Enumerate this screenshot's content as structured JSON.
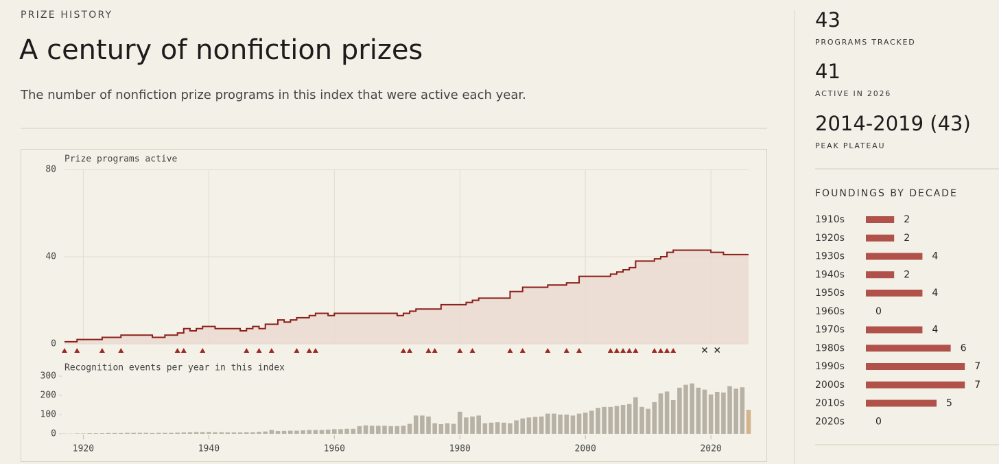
{
  "header": {
    "eyebrow": "PRIZE HISTORY",
    "title": "A century of nonfiction prizes",
    "subtitle": "The number of nonfiction prize programs in this index that were active each year."
  },
  "stats": [
    {
      "value": 43,
      "label": "PROGRAMS TRACKED"
    },
    {
      "value": 41,
      "label": "ACTIVE IN 2026"
    },
    {
      "value": "2014-2019 (43)",
      "label": "PEAK PLATEAU"
    }
  ],
  "chart_data": [
    {
      "type": "step",
      "axis_label": "Prize programs active",
      "color": "#8b1e1a",
      "fill": "#ead9d0",
      "marker_color": "#9b2a22",
      "closure_color": "#222222",
      "x": [
        1917,
        1919,
        1923,
        1926,
        1931,
        1933,
        1935,
        1936,
        1937,
        1938,
        1939,
        1941,
        1945,
        1946,
        1947,
        1948,
        1949,
        1951,
        1952,
        1953,
        1954,
        1956,
        1957,
        1959,
        1960,
        1970,
        1971,
        1972,
        1973,
        1977,
        1981,
        1982,
        1983,
        1988,
        1990,
        1994,
        1997,
        1999,
        2004,
        2005,
        2006,
        2007,
        2008,
        2011,
        2012,
        2013,
        2014,
        2020,
        2022,
        2026
      ],
      "values": [
        1,
        2,
        3,
        4,
        3,
        4,
        5,
        7,
        6,
        7,
        8,
        7,
        6,
        7,
        8,
        7,
        9,
        11,
        10,
        11,
        12,
        13,
        14,
        13,
        14,
        13,
        14,
        15,
        16,
        18,
        19,
        20,
        21,
        24,
        26,
        27,
        28,
        31,
        32,
        33,
        34,
        35,
        38,
        39,
        40,
        42,
        43,
        42,
        41,
        41
      ],
      "foundings": [
        1917,
        1919,
        1923,
        1926,
        1935,
        1936,
        1939,
        1946,
        1948,
        1950,
        1954,
        1956,
        1957,
        1971,
        1972,
        1975,
        1976,
        1980,
        1982,
        1988,
        1990,
        1994,
        1997,
        1999,
        2004,
        2005,
        2006,
        2007,
        2008,
        2011,
        2012,
        2013,
        2014
      ],
      "closures": [
        2019,
        2021
      ],
      "xlim": [
        1917,
        2026
      ],
      "xticks": [
        1920,
        1940,
        1960,
        1980,
        2000,
        2020
      ],
      "ylim": [
        0,
        80
      ],
      "yticks": [
        0,
        40,
        80
      ],
      "grid": true
    },
    {
      "type": "bar",
      "axis_label": "Recognition events per year in this index",
      "color": "#b7b2a5",
      "partial_color": "#d4b48e",
      "x": [
        1917,
        1918,
        1919,
        1920,
        1921,
        1922,
        1923,
        1924,
        1925,
        1926,
        1927,
        1928,
        1929,
        1930,
        1931,
        1932,
        1933,
        1934,
        1935,
        1936,
        1937,
        1938,
        1939,
        1940,
        1941,
        1942,
        1943,
        1944,
        1945,
        1946,
        1947,
        1948,
        1949,
        1950,
        1951,
        1952,
        1953,
        1954,
        1955,
        1956,
        1957,
        1958,
        1959,
        1960,
        1961,
        1962,
        1963,
        1964,
        1965,
        1966,
        1967,
        1968,
        1969,
        1970,
        1971,
        1972,
        1973,
        1974,
        1975,
        1976,
        1977,
        1978,
        1979,
        1980,
        1981,
        1982,
        1983,
        1984,
        1985,
        1986,
        1987,
        1988,
        1989,
        1990,
        1991,
        1992,
        1993,
        1994,
        1995,
        1996,
        1997,
        1998,
        1999,
        2000,
        2001,
        2002,
        2003,
        2004,
        2005,
        2006,
        2007,
        2008,
        2009,
        2010,
        2011,
        2012,
        2013,
        2014,
        2015,
        2016,
        2017,
        2018,
        2019,
        2020,
        2021,
        2022,
        2023,
        2024,
        2025,
        2026
      ],
      "values": [
        1,
        1,
        2,
        2,
        3,
        3,
        3,
        4,
        4,
        4,
        5,
        5,
        5,
        5,
        4,
        5,
        5,
        5,
        6,
        7,
        8,
        9,
        9,
        9,
        8,
        8,
        7,
        7,
        7,
        8,
        8,
        10,
        12,
        20,
        14,
        15,
        16,
        16,
        18,
        20,
        20,
        20,
        22,
        24,
        24,
        26,
        26,
        40,
        44,
        42,
        42,
        42,
        40,
        40,
        42,
        52,
        95,
        95,
        90,
        55,
        50,
        55,
        52,
        115,
        85,
        90,
        95,
        55,
        58,
        60,
        58,
        55,
        70,
        80,
        85,
        88,
        90,
        105,
        105,
        100,
        100,
        95,
        105,
        110,
        120,
        135,
        140,
        140,
        145,
        150,
        155,
        190,
        140,
        130,
        165,
        210,
        220,
        175,
        240,
        255,
        262,
        240,
        230,
        205,
        218,
        215,
        248,
        235,
        242,
        125
      ],
      "xlim": [
        1917,
        2026
      ],
      "xticks": [
        1920,
        1940,
        1960,
        1980,
        2000,
        2020
      ],
      "ylim": [
        0,
        300
      ],
      "yticks": [
        0,
        100,
        200,
        300
      ]
    },
    {
      "type": "hbar",
      "title": "FOUNDINGS BY DECADE",
      "color": "#b0524a",
      "categories": [
        "1910s",
        "1920s",
        "1930s",
        "1940s",
        "1950s",
        "1960s",
        "1970s",
        "1980s",
        "1990s",
        "2000s",
        "2010s",
        "2020s"
      ],
      "values": [
        2,
        2,
        4,
        2,
        4,
        0,
        4,
        6,
        7,
        7,
        5,
        0
      ]
    }
  ]
}
